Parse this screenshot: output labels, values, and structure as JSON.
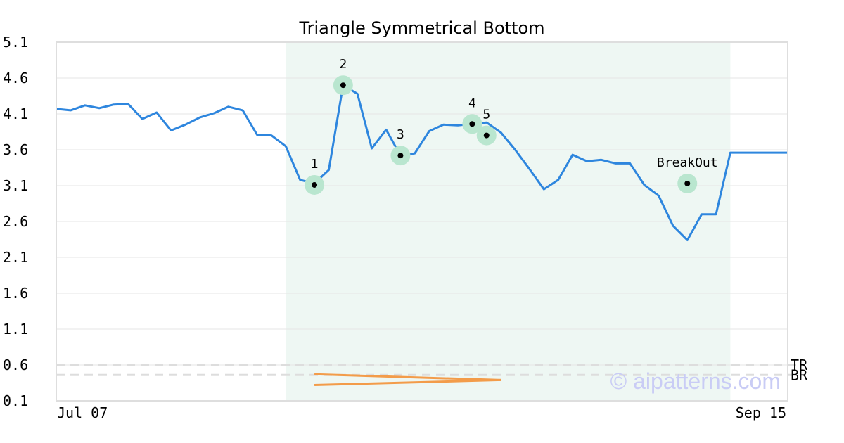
{
  "chart_data": {
    "type": "line",
    "title": "Triangle Symmetrical Bottom",
    "xlabel": "",
    "ylabel": "",
    "x_tick_labels": [
      "Jul 07",
      "Sep 15"
    ],
    "y_ticks": [
      "5.1",
      "4.6",
      "4.1",
      "3.6",
      "3.1",
      "2.6",
      "2.1",
      "1.6",
      "1.1",
      "0.6",
      "0.1"
    ],
    "ylim": [
      0.1,
      5.1
    ],
    "xlim": [
      0,
      51
    ],
    "grid": true,
    "series": [
      {
        "color": "#2e86de",
        "x": [
          0,
          1,
          2,
          3,
          4,
          5,
          6,
          7,
          8,
          9,
          10,
          11,
          12,
          13,
          14,
          15,
          16,
          17,
          18,
          19,
          20,
          21,
          22,
          23,
          24,
          25,
          26,
          27,
          28,
          29,
          30,
          31,
          32,
          33,
          34,
          35,
          36,
          37,
          38,
          39,
          40,
          41,
          42,
          43,
          44,
          45,
          46,
          47,
          48,
          49,
          50,
          51
        ],
        "values": [
          4.17,
          4.15,
          4.22,
          4.18,
          4.23,
          4.24,
          4.03,
          4.12,
          3.87,
          3.95,
          4.05,
          4.11,
          4.2,
          4.15,
          3.81,
          3.8,
          3.65,
          3.18,
          3.13,
          3.32,
          4.5,
          4.38,
          3.62,
          3.88,
          3.52,
          3.55,
          3.86,
          3.95,
          3.94,
          3.96,
          3.98,
          3.84,
          3.6,
          3.33,
          3.05,
          3.18,
          3.53,
          3.44,
          3.46,
          3.41,
          3.41,
          3.11,
          2.96,
          2.54,
          2.34,
          2.7,
          2.7,
          3.56,
          3.56,
          3.56,
          3.56,
          3.56
        ]
      }
    ],
    "pattern_region": {
      "x_start": 16,
      "x_end": 47,
      "color": "#eef7f3"
    },
    "pattern_points": [
      {
        "label": "1",
        "x": 18,
        "y": 3.11
      },
      {
        "label": "2",
        "x": 20,
        "y": 4.5
      },
      {
        "label": "3",
        "x": 24,
        "y": 3.52
      },
      {
        "label": "4",
        "x": 29,
        "y": 3.96
      },
      {
        "label": "5",
        "x": 30,
        "y": 3.8
      },
      {
        "label": "BreakOut",
        "x": 44,
        "y": 3.13
      }
    ],
    "reference_lines": [
      {
        "label": "TR",
        "y": 0.6
      },
      {
        "label": "BR",
        "y": 0.46
      }
    ],
    "triangle_lines": [
      {
        "x1": 18,
        "y1": 0.47,
        "x2": 31,
        "y2": 0.39
      },
      {
        "x1": 18,
        "y1": 0.32,
        "x2": 31,
        "y2": 0.39
      }
    ],
    "watermark": "© aipatterns.com",
    "colors": {
      "line": "#2e86de",
      "marker_halo": "#b9e6cf",
      "triangle": "#f39c4a",
      "reference": "#dddddd",
      "region": "#eef7f3",
      "watermark": "#c9ccf5"
    }
  }
}
